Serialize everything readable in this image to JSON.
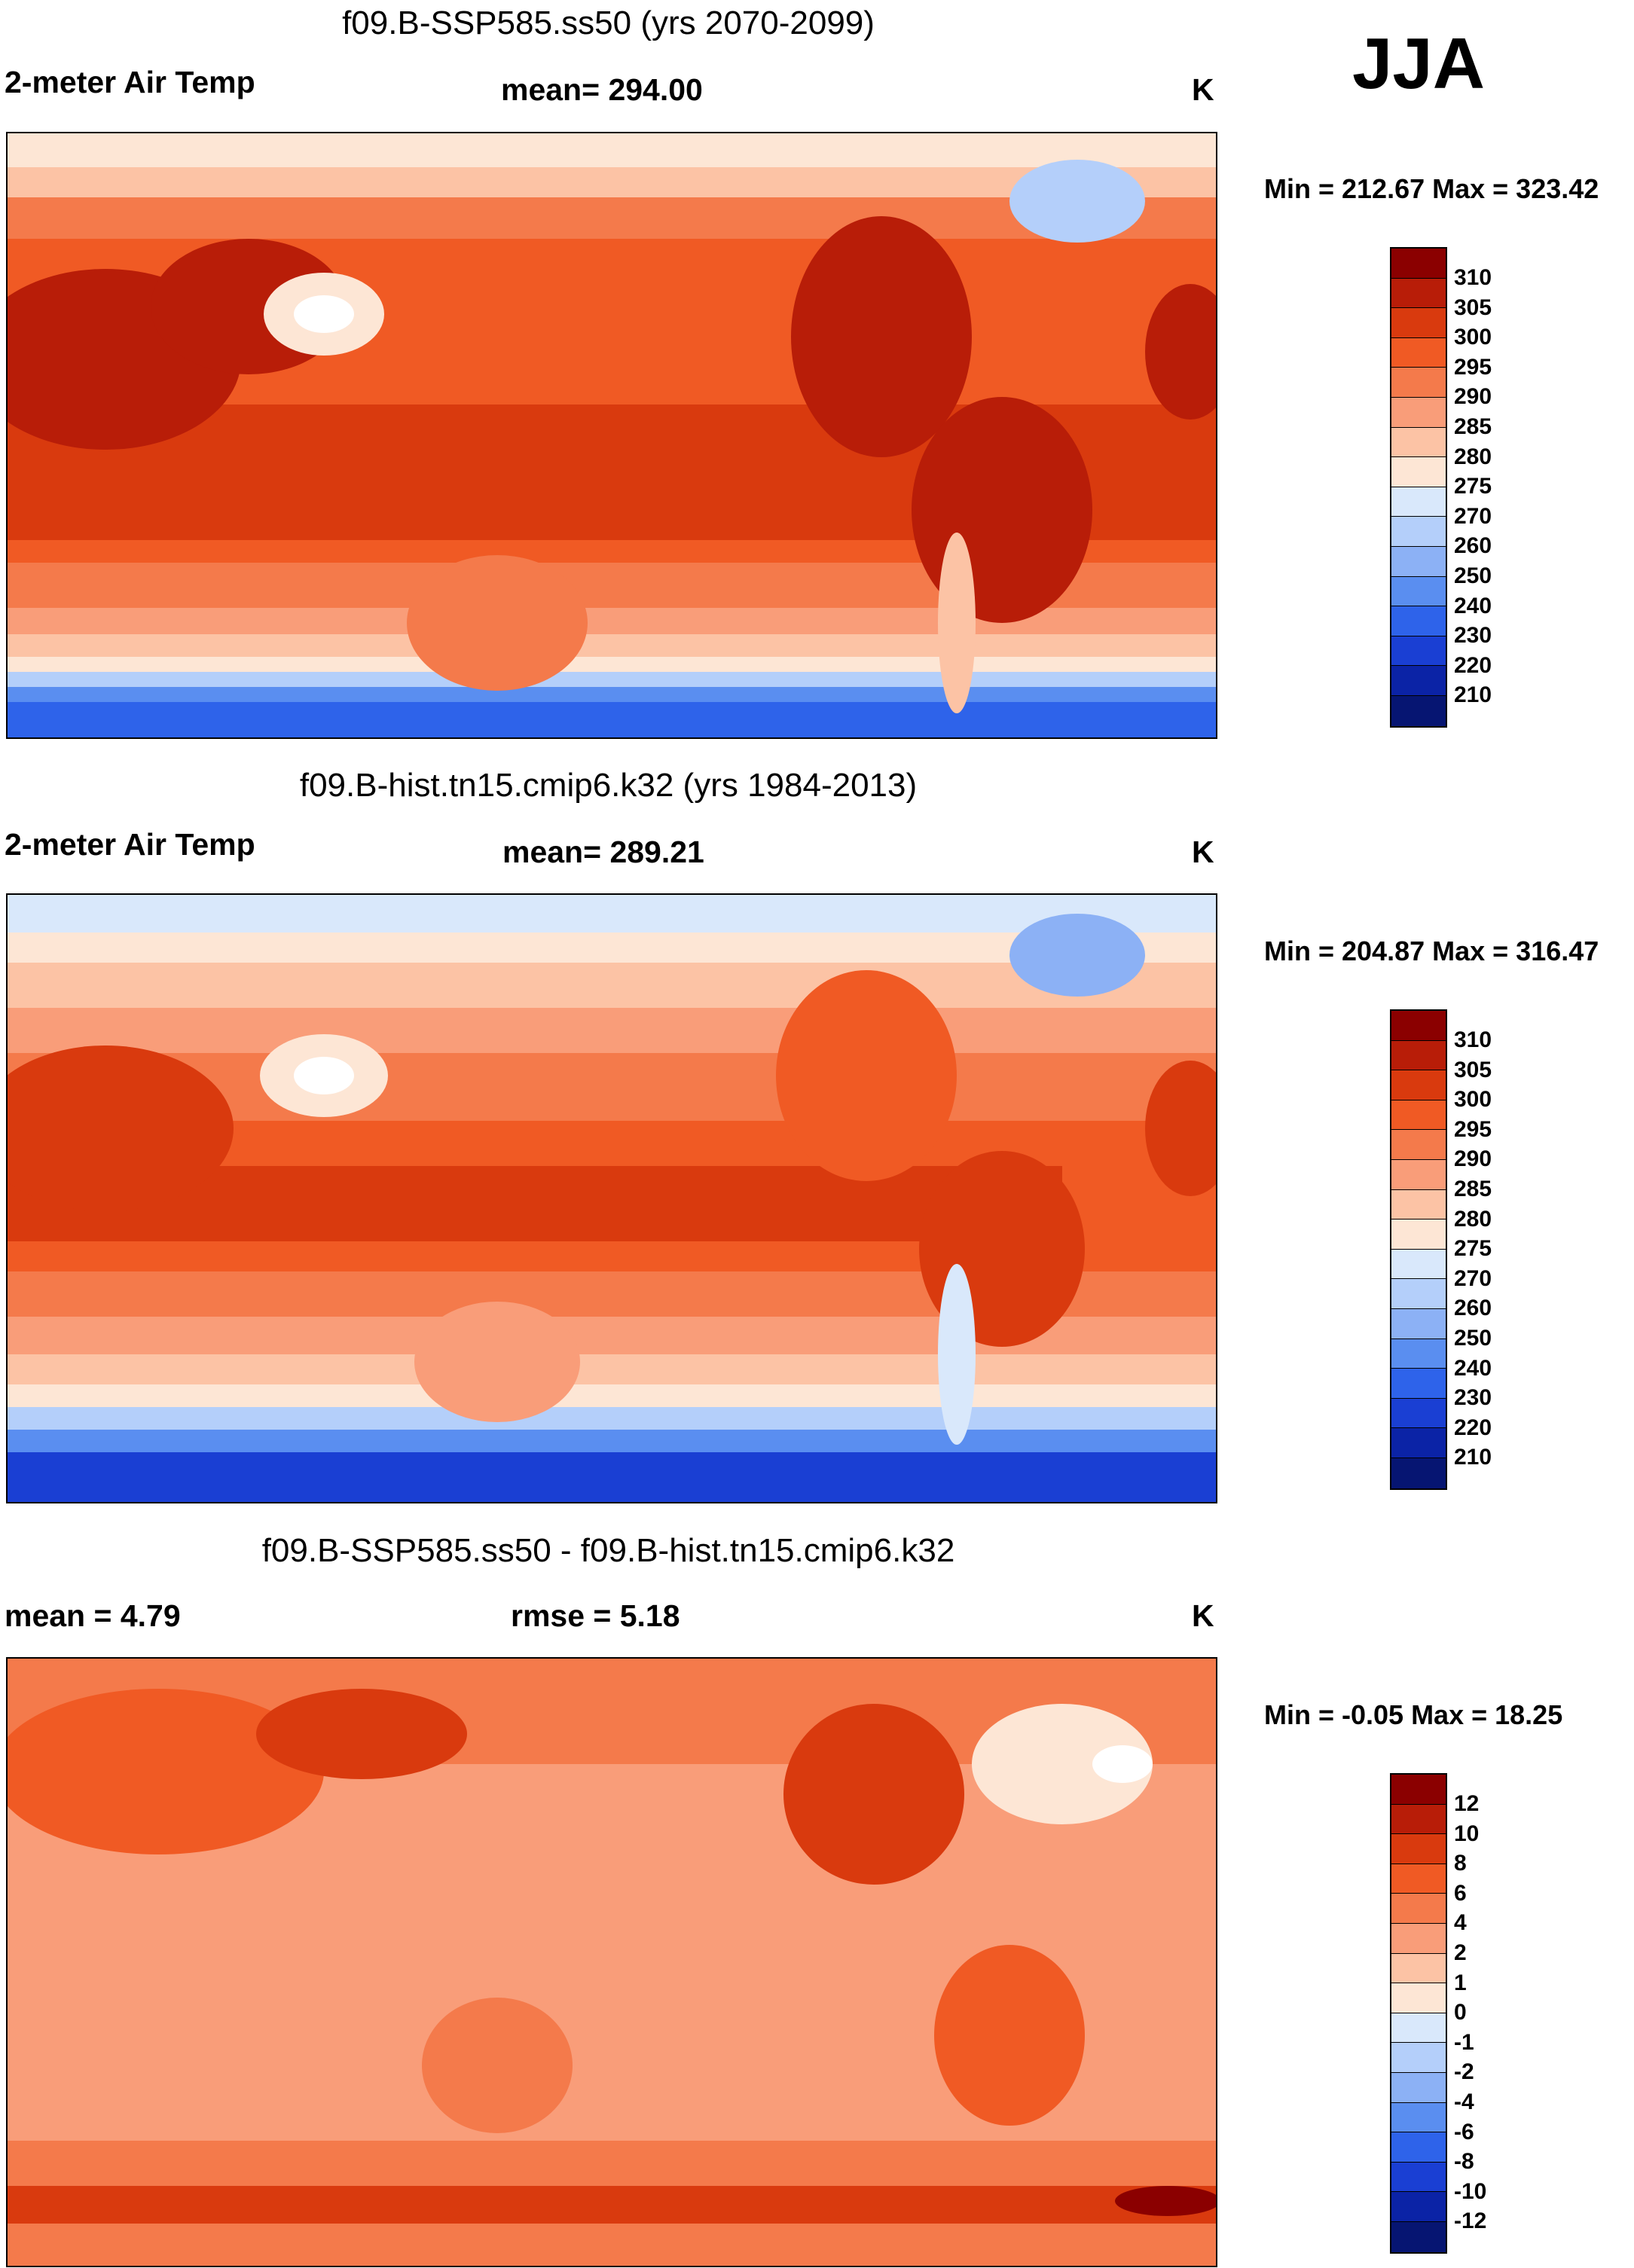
{
  "season": "JJA",
  "panels": [
    {
      "title": "f09.B-SSP585.ss50 (yrs 2070-2099)",
      "left_label": "2-meter Air Temp",
      "center_label": "mean= 294.00",
      "units": "K",
      "minmax": "Min = 212.67 Max = 323.42",
      "colorbar": {
        "labels": [
          "310",
          "305",
          "300",
          "295",
          "290",
          "285",
          "280",
          "275",
          "270",
          "260",
          "250",
          "240",
          "230",
          "220",
          "210"
        ],
        "colors": [
          "#8b0000",
          "#b81d08",
          "#d93a0e",
          "#f05a24",
          "#f47a4b",
          "#f99d79",
          "#fcc3a5",
          "#fde6d5",
          "#d9e8fb",
          "#b4cffa",
          "#8cb1f5",
          "#5a8ef0",
          "#2e63ea",
          "#1a3fd3",
          "#0b23a6",
          "#061572"
        ]
      }
    },
    {
      "title": "f09.B-hist.tn15.cmip6.k32 (yrs 1984-2013)",
      "left_label": "2-meter Air Temp",
      "center_label": "mean= 289.21",
      "units": "K",
      "minmax": "Min = 204.87 Max = 316.47",
      "colorbar": {
        "labels": [
          "310",
          "305",
          "300",
          "295",
          "290",
          "285",
          "280",
          "275",
          "270",
          "260",
          "250",
          "240",
          "230",
          "220",
          "210"
        ],
        "colors": [
          "#8b0000",
          "#b81d08",
          "#d93a0e",
          "#f05a24",
          "#f47a4b",
          "#f99d79",
          "#fcc3a5",
          "#fde6d5",
          "#d9e8fb",
          "#b4cffa",
          "#8cb1f5",
          "#5a8ef0",
          "#2e63ea",
          "#1a3fd3",
          "#0b23a6",
          "#061572"
        ]
      }
    },
    {
      "title": "f09.B-SSP585.ss50 - f09.B-hist.tn15.cmip6.k32",
      "left_label": "mean =   4.79",
      "center_label": "rmse =   5.18",
      "units": "K",
      "minmax": "Min =  -0.05 Max =  18.25",
      "colorbar": {
        "labels": [
          "12",
          "10",
          "8",
          "6",
          "4",
          "2",
          "1",
          "0",
          "-1",
          "-2",
          "-4",
          "-6",
          "-8",
          "-10",
          "-12"
        ],
        "colors": [
          "#8b0000",
          "#b81d08",
          "#d93a0e",
          "#f05a24",
          "#f47a4b",
          "#f99d79",
          "#fcc3a5",
          "#fde6d5",
          "#d9e8fb",
          "#b4cffa",
          "#8cb1f5",
          "#5a8ef0",
          "#2e63ea",
          "#1a3fd3",
          "#0b23a6",
          "#061572"
        ]
      }
    }
  ]
}
